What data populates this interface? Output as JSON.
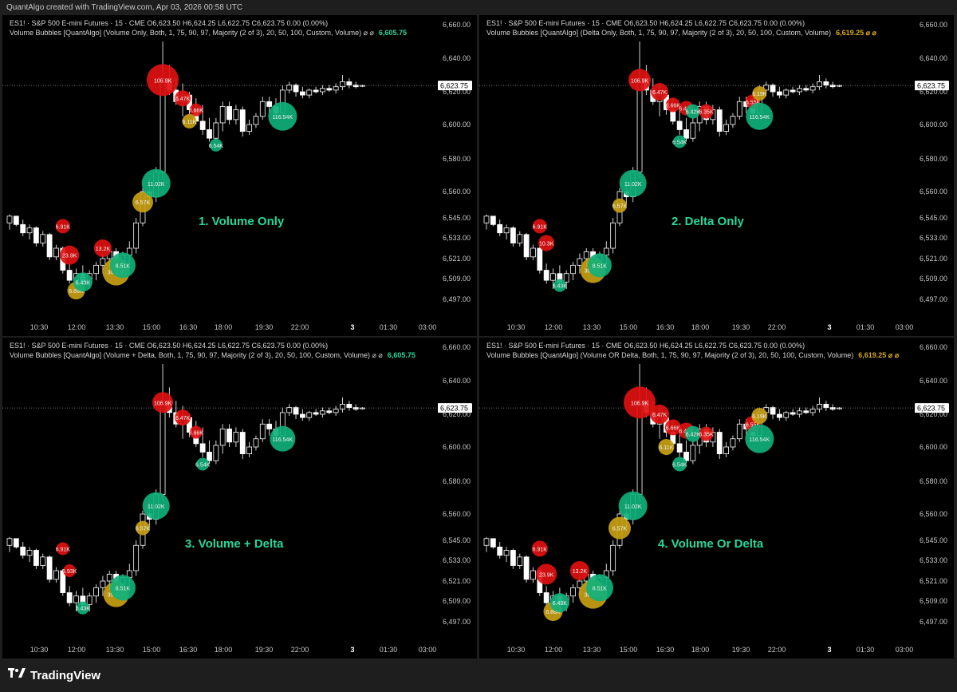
{
  "page": {
    "topline": "QuantAlgo created with TradingView.com, Apr 03, 2026 00:58 UTC",
    "brand": "TradingView",
    "logo_icon": "tradingview-logo-icon"
  },
  "colors": {
    "red": "#e01010",
    "yellow": "#c8a012",
    "green": "#0fb07a",
    "accent": "#26d89a",
    "up_candle": "#ffffff",
    "down_candle": "#ffffff"
  },
  "panels": [
    {
      "title": "1. Volume Only",
      "header1": "ES1! · S&P 500 E-mini Futures · 15 · CME  O6,623.50  H6,624.25  L6,622.75  C6,623.75  0.00 (0.00%)",
      "header2": "Volume Bubbles [QuantAlgo] (Volume Only, Both, 1, 75, 90, 97, Majority (2 of 3), 20, 50, 100, Custom, Volume)  ⌀  ⌀",
      "header_value": "6,605.75",
      "header_value_color": "#26d89a",
      "price_label": "6,623.75"
    },
    {
      "title": "2. Delta Only",
      "header1": "ES1! · S&P 500 E-mini Futures · 15 · CME  O6,623.50  H6,624.25  L6,622.75  C6,623.75  0.00 (0.00%)",
      "header2": "Volume Bubbles [QuantAlgo] (Delta Only, Both, 1, 75, 90, 97, Majority (2 of 3), 20, 50, 100, Custom, Volume)",
      "header_value": "6,619.25  ⌀  ⌀",
      "header_value_color": "#d6a81d",
      "price_label": "6,623.75"
    },
    {
      "title": "3. Volume + Delta",
      "header1": "ES1! · S&P 500 E-mini Futures · 15 · CME  O6,623.50  H6,624.25  L6,622.75  C6,623.75  0.00 (0.00%)",
      "header2": "Volume Bubbles [QuantAlgo] (Volume + Delta, Both, 1, 75, 90, 97, Majority (2 of 3), 20, 50, 100, Custom, Volume)  ⌀  ⌀",
      "header_value": "6,605.75",
      "header_value_color": "#26d89a",
      "price_label": "6,623.75"
    },
    {
      "title": "4. Volume Or Delta",
      "header1": "ES1! · S&P 500 E-mini Futures · 15 · CME  O6,623.50  H6,624.25  L6,622.75  C6,623.75  0.00 (0.00%)",
      "header2": "Volume Bubbles [QuantAlgo] (Volume OR Delta, Both, 1, 75, 90, 97, Majority (2 of 3), 20, 50, 100, Custom, Volume)",
      "header_value": "6,619.25  ⌀  ⌀",
      "header_value_color": "#d6a81d",
      "price_label": "6,623.75"
    }
  ],
  "chart_data": {
    "type": "candlestick",
    "yticks": [
      6660,
      6640,
      6620,
      6600,
      6580,
      6560,
      6545,
      6533,
      6521,
      6509,
      6497
    ],
    "ytick_labels": [
      "6,660.00",
      "6,640.00",
      "6,620.00",
      "6,600.00",
      "6,580.00",
      "6,560.00",
      "6,545.00",
      "6,533.00",
      "6,521.00",
      "6,509.00",
      "6,497.00"
    ],
    "ylim": [
      6490,
      6665
    ],
    "xticks": [
      "10:30",
      "12:00",
      "13:30",
      "15:00",
      "16:30",
      "18:00",
      "19:30",
      "22:00",
      "3",
      "01:30",
      "03:00"
    ],
    "last_price": 6623.75,
    "candles": [
      [
        6542,
        6547,
        6538,
        6546
      ],
      [
        6546,
        6546,
        6540,
        6541
      ],
      [
        6541,
        6544,
        6534,
        6536
      ],
      [
        6536,
        6541,
        6532,
        6539
      ],
      [
        6539,
        6540,
        6528,
        6530
      ],
      [
        6530,
        6537,
        6528,
        6535
      ],
      [
        6535,
        6536,
        6520,
        6522
      ],
      [
        6522,
        6529,
        6520,
        6527
      ],
      [
        6527,
        6528,
        6512,
        6514
      ],
      [
        6514,
        6518,
        6506,
        6508
      ],
      [
        6508,
        6515,
        6503,
        6512
      ],
      [
        6512,
        6517,
        6505,
        6507
      ],
      [
        6507,
        6514,
        6503,
        6512
      ],
      [
        6512,
        6519,
        6508,
        6517
      ],
      [
        6517,
        6524,
        6512,
        6521
      ],
      [
        6521,
        6527,
        6516,
        6525
      ],
      [
        6525,
        6527,
        6517,
        6519
      ],
      [
        6519,
        6525,
        6515,
        6523
      ],
      [
        6523,
        6531,
        6518,
        6527
      ],
      [
        6527,
        6545,
        6524,
        6542
      ],
      [
        6542,
        6562,
        6540,
        6560
      ],
      [
        6560,
        6568,
        6552,
        6557
      ],
      [
        6557,
        6575,
        6554,
        6572
      ],
      [
        6572,
        6650,
        6568,
        6628
      ],
      [
        6628,
        6636,
        6618,
        6621
      ],
      [
        6621,
        6628,
        6612,
        6614
      ],
      [
        6614,
        6625,
        6605,
        6618
      ],
      [
        6618,
        6620,
        6606,
        6609
      ],
      [
        6609,
        6616,
        6600,
        6602
      ],
      [
        6602,
        6612,
        6594,
        6597
      ],
      [
        6597,
        6604,
        6590,
        6592
      ],
      [
        6592,
        6604,
        6590,
        6601
      ],
      [
        6601,
        6614,
        6596,
        6611
      ],
      [
        6611,
        6614,
        6600,
        6603
      ],
      [
        6603,
        6612,
        6600,
        6609
      ],
      [
        6609,
        6611,
        6593,
        6596
      ],
      [
        6596,
        6603,
        6594,
        6600
      ],
      [
        6600,
        6607,
        6598,
        6605
      ],
      [
        6605,
        6617,
        6603,
        6614
      ],
      [
        6614,
        6617,
        6607,
        6611
      ],
      [
        6611,
        6616,
        6604,
        6607
      ],
      [
        6607,
        6624,
        6605,
        6621
      ],
      [
        6621,
        6626,
        6619,
        6624
      ],
      [
        6624,
        6625,
        6617,
        6620
      ],
      [
        6620,
        6623,
        6616,
        6618
      ],
      [
        6618,
        6622,
        6616,
        6621
      ],
      [
        6621,
        6623,
        6619,
        6620
      ],
      [
        6620,
        6624,
        6618,
        6622
      ],
      [
        6622,
        6624,
        6620,
        6621
      ],
      [
        6621,
        6625,
        6619,
        6623
      ],
      [
        6623,
        6630,
        6621,
        6626
      ],
      [
        6626,
        6628,
        6622,
        6624
      ],
      [
        6624,
        6626,
        6622,
        6623
      ],
      [
        6623.5,
        6624.25,
        6622.75,
        6623.75
      ]
    ],
    "bubbles": [
      [
        {
          "bar": 9,
          "price": 6523,
          "r": 12,
          "color": "red",
          "label": "23.9K"
        },
        {
          "bar": 8,
          "price": 6540,
          "r": 9,
          "color": "red",
          "label": "6.91K"
        },
        {
          "bar": 14,
          "price": 6527,
          "r": 11,
          "color": "red",
          "label": "13.2K"
        },
        {
          "bar": 10,
          "price": 6502,
          "r": 11,
          "color": "yellow",
          "label": "6.88K"
        },
        {
          "bar": 11,
          "price": 6507,
          "r": 12,
          "color": "green",
          "label": "6.43K"
        },
        {
          "bar": 16,
          "price": 6513,
          "r": 17,
          "color": "yellow",
          "label": "30.92K"
        },
        {
          "bar": 17,
          "price": 6517,
          "r": 16,
          "color": "green",
          "label": "8.51K"
        },
        {
          "bar": 20,
          "price": 6554,
          "r": 13,
          "color": "yellow",
          "label": "6.57K"
        },
        {
          "bar": 22,
          "price": 6565,
          "r": 18,
          "color": "green",
          "label": "11.02K"
        },
        {
          "bar": 23,
          "price": 6627,
          "r": 20,
          "color": "red",
          "label": "106.9K"
        },
        {
          "bar": 26,
          "price": 6616,
          "r": 10,
          "color": "red",
          "label": "6.47K"
        },
        {
          "bar": 28,
          "price": 6609,
          "r": 8,
          "color": "red",
          "label": "6.66K"
        },
        {
          "bar": 27,
          "price": 6602,
          "r": 9,
          "color": "yellow",
          "label": "6.11K"
        },
        {
          "bar": 31,
          "price": 6588,
          "r": 8,
          "color": "green",
          "label": "6.54K"
        },
        {
          "bar": 41,
          "price": 6605,
          "r": 18,
          "color": "green",
          "label": "116.54K"
        }
      ],
      [
        {
          "bar": 9,
          "price": 6530,
          "r": 10,
          "color": "red",
          "label": "10.3K"
        },
        {
          "bar": 8,
          "price": 6540,
          "r": 9,
          "color": "red",
          "label": "6.91K"
        },
        {
          "bar": 11,
          "price": 6505,
          "r": 8,
          "color": "green",
          "label": "6.43K"
        },
        {
          "bar": 16,
          "price": 6514,
          "r": 16,
          "color": "yellow",
          "label": "30.92K"
        },
        {
          "bar": 17,
          "price": 6517,
          "r": 15,
          "color": "green",
          "label": "8.51K"
        },
        {
          "bar": 20,
          "price": 6552,
          "r": 9,
          "color": "yellow",
          "label": "6.57K"
        },
        {
          "bar": 22,
          "price": 6565,
          "r": 17,
          "color": "green",
          "label": "11.02K"
        },
        {
          "bar": 23,
          "price": 6627,
          "r": 14,
          "color": "red",
          "label": "106.9K"
        },
        {
          "bar": 26,
          "price": 6620,
          "r": 11,
          "color": "red",
          "label": "6.47K"
        },
        {
          "bar": 28,
          "price": 6612,
          "r": 9,
          "color": "red",
          "label": "6.66K"
        },
        {
          "bar": 30,
          "price": 6610,
          "r": 9,
          "color": "red",
          "label": "6.42K"
        },
        {
          "bar": 31,
          "price": 6608,
          "r": 9,
          "color": "green",
          "label": "6.42K"
        },
        {
          "bar": 33,
          "price": 6608,
          "r": 9,
          "color": "red",
          "label": "6.35K"
        },
        {
          "bar": 29,
          "price": 6590,
          "r": 8,
          "color": "green",
          "label": "6.54K"
        },
        {
          "bar": 40,
          "price": 6614,
          "r": 9,
          "color": "red",
          "label": "6.55K"
        },
        {
          "bar": 41,
          "price": 6619,
          "r": 9,
          "color": "yellow",
          "label": "6.19K"
        },
        {
          "bar": 41,
          "price": 6605,
          "r": 17,
          "color": "green",
          "label": "116.54K"
        }
      ],
      [
        {
          "bar": 8,
          "price": 6540,
          "r": 8,
          "color": "red",
          "label": "6.91K"
        },
        {
          "bar": 9,
          "price": 6527,
          "r": 8,
          "color": "red",
          "label": "6.93K"
        },
        {
          "bar": 11,
          "price": 6505,
          "r": 8,
          "color": "green",
          "label": "6.43K"
        },
        {
          "bar": 16,
          "price": 6513,
          "r": 16,
          "color": "yellow",
          "label": "30.92K"
        },
        {
          "bar": 17,
          "price": 6517,
          "r": 16,
          "color": "green",
          "label": "8.51K"
        },
        {
          "bar": 20,
          "price": 6552,
          "r": 9,
          "color": "yellow",
          "label": "6.57K"
        },
        {
          "bar": 22,
          "price": 6565,
          "r": 17,
          "color": "green",
          "label": "11.02K"
        },
        {
          "bar": 23,
          "price": 6627,
          "r": 13,
          "color": "red",
          "label": "106.9K"
        },
        {
          "bar": 26,
          "price": 6618,
          "r": 10,
          "color": "red",
          "label": "6.47K"
        },
        {
          "bar": 28,
          "price": 6609,
          "r": 8,
          "color": "red",
          "label": "6.66K"
        },
        {
          "bar": 29,
          "price": 6590,
          "r": 8,
          "color": "green",
          "label": "6.54K"
        },
        {
          "bar": 41,
          "price": 6605,
          "r": 16,
          "color": "green",
          "label": "116.54K"
        }
      ],
      [
        {
          "bar": 9,
          "price": 6525,
          "r": 13,
          "color": "red",
          "label": "23.9K"
        },
        {
          "bar": 8,
          "price": 6540,
          "r": 10,
          "color": "red",
          "label": "6.91K"
        },
        {
          "bar": 14,
          "price": 6527,
          "r": 12,
          "color": "red",
          "label": "13.2K"
        },
        {
          "bar": 10,
          "price": 6503,
          "r": 12,
          "color": "yellow",
          "label": "6.88K"
        },
        {
          "bar": 11,
          "price": 6508,
          "r": 12,
          "color": "green",
          "label": "6.43K"
        },
        {
          "bar": 16,
          "price": 6513,
          "r": 18,
          "color": "yellow",
          "label": "30.92K"
        },
        {
          "bar": 17,
          "price": 6517,
          "r": 17,
          "color": "green",
          "label": "8.51K"
        },
        {
          "bar": 20,
          "price": 6552,
          "r": 14,
          "color": "yellow",
          "label": "6.57K"
        },
        {
          "bar": 22,
          "price": 6565,
          "r": 18,
          "color": "green",
          "label": "11.02K"
        },
        {
          "bar": 23,
          "price": 6627,
          "r": 20,
          "color": "red",
          "label": "106.9K"
        },
        {
          "bar": 26,
          "price": 6620,
          "r": 12,
          "color": "red",
          "label": "6.47K"
        },
        {
          "bar": 28,
          "price": 6612,
          "r": 10,
          "color": "red",
          "label": "6.66K"
        },
        {
          "bar": 27,
          "price": 6600,
          "r": 10,
          "color": "yellow",
          "label": "6.11K"
        },
        {
          "bar": 30,
          "price": 6610,
          "r": 10,
          "color": "red",
          "label": "6.42K"
        },
        {
          "bar": 31,
          "price": 6608,
          "r": 10,
          "color": "green",
          "label": "6.42K"
        },
        {
          "bar": 33,
          "price": 6608,
          "r": 9,
          "color": "red",
          "label": "6.35K"
        },
        {
          "bar": 29,
          "price": 6590,
          "r": 9,
          "color": "green",
          "label": "6.54K"
        },
        {
          "bar": 40,
          "price": 6614,
          "r": 10,
          "color": "red",
          "label": "6.55K"
        },
        {
          "bar": 41,
          "price": 6619,
          "r": 10,
          "color": "yellow",
          "label": "6.19K"
        },
        {
          "bar": 41,
          "price": 6605,
          "r": 18,
          "color": "green",
          "label": "116.54K"
        }
      ]
    ]
  }
}
